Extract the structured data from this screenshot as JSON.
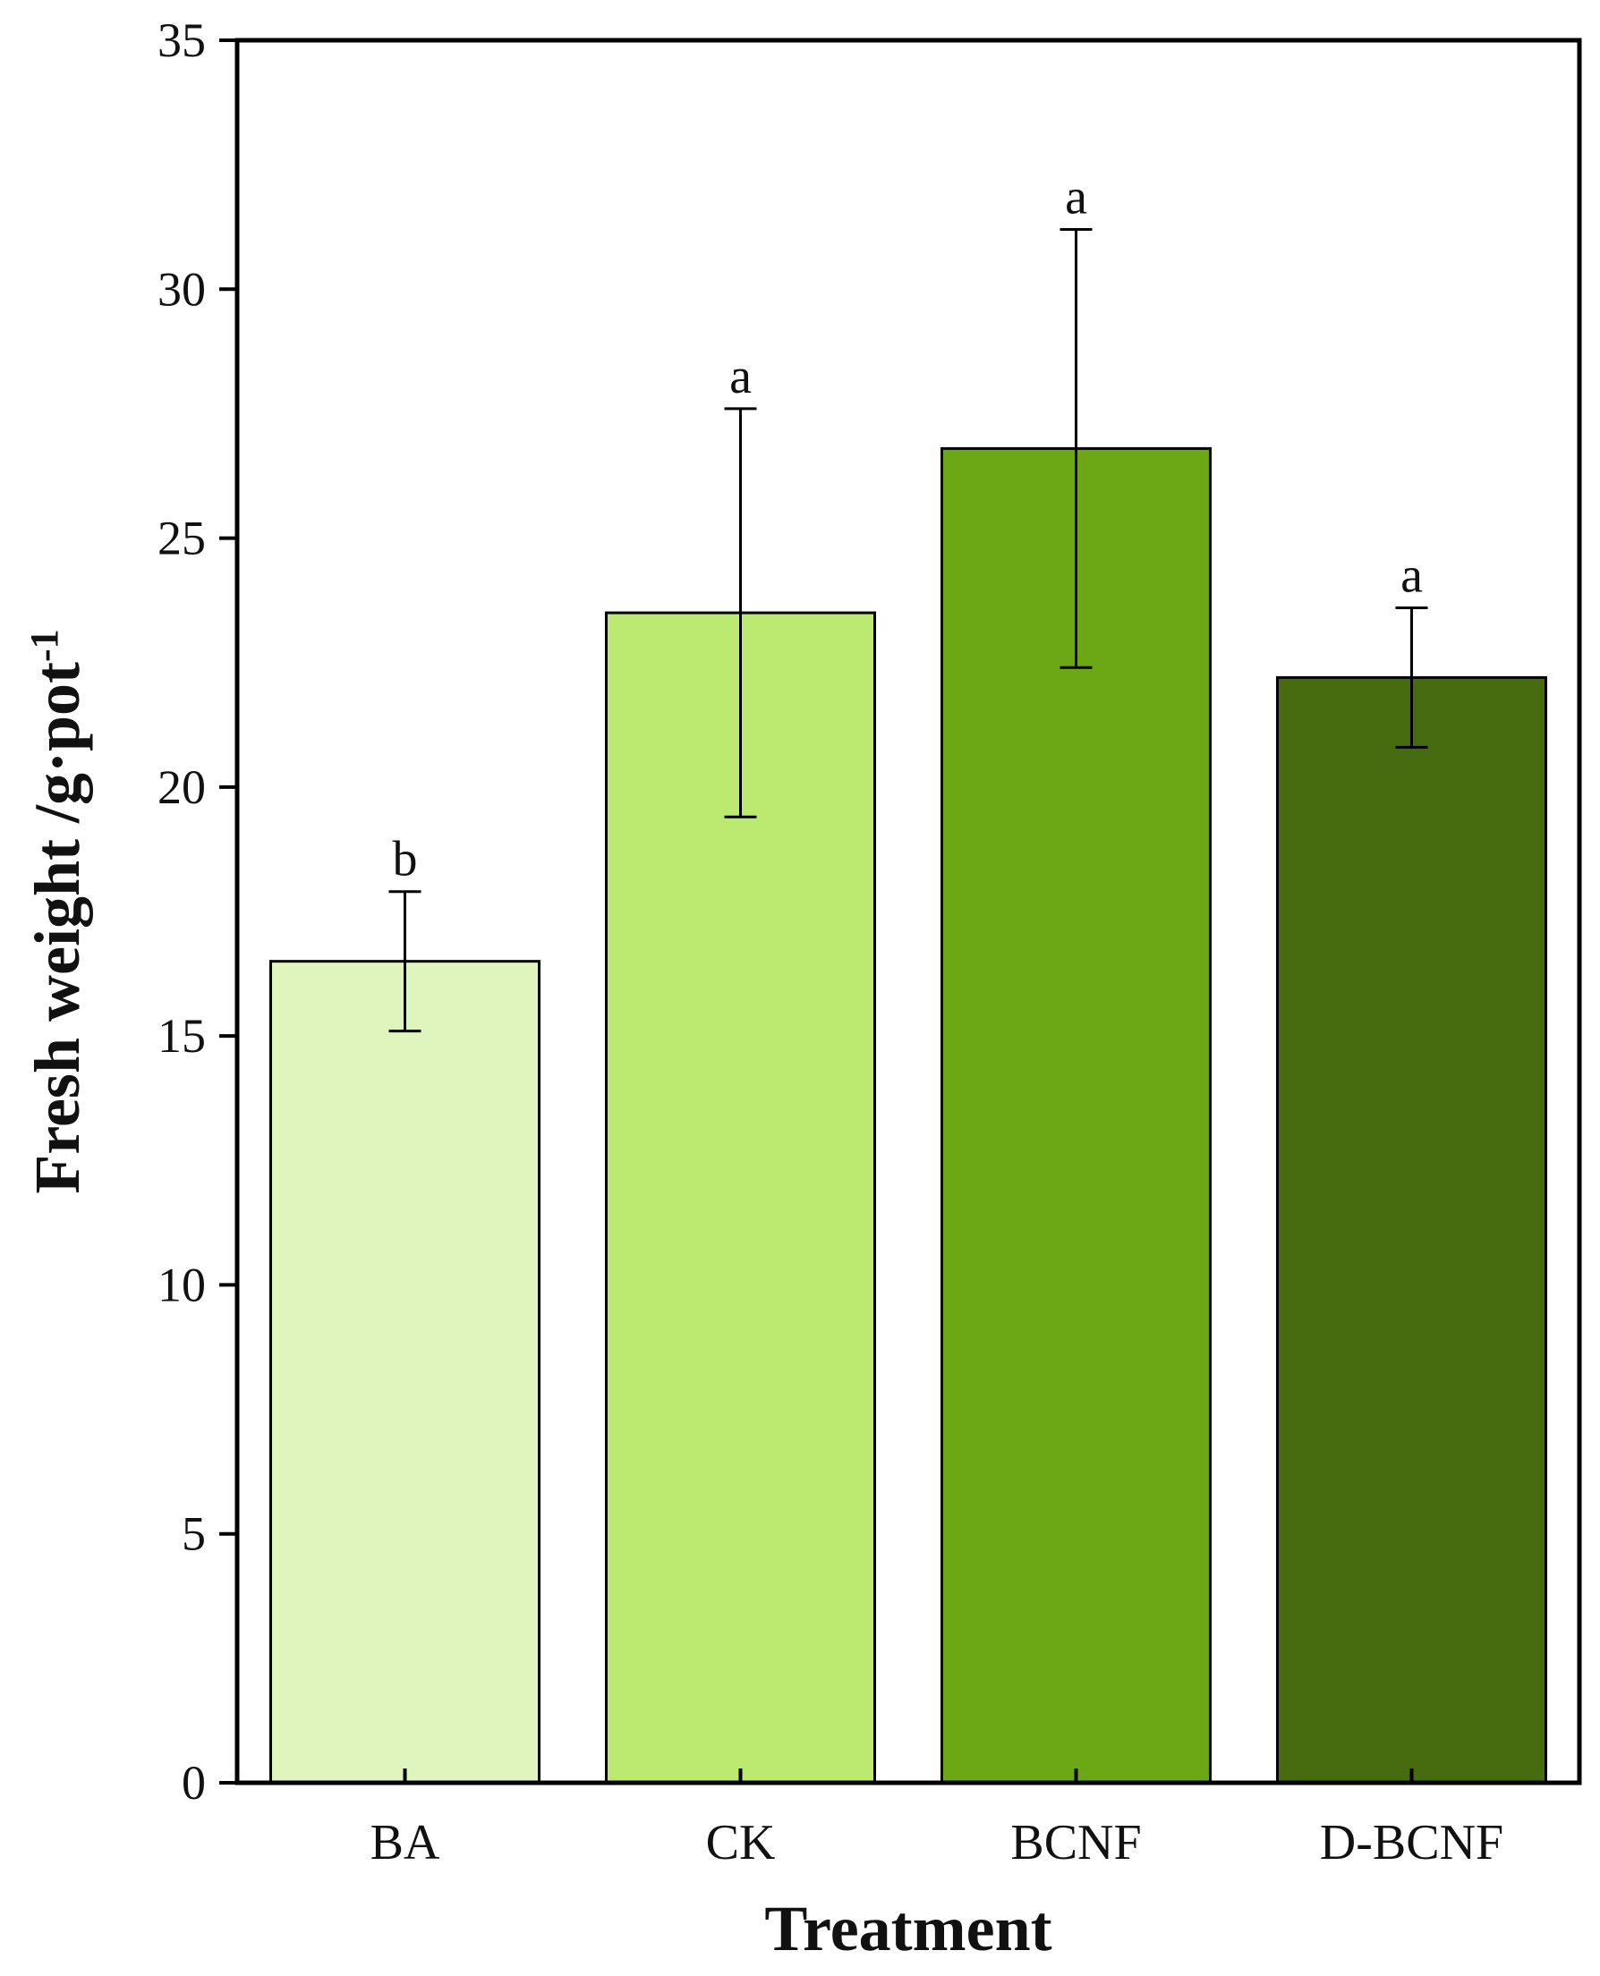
{
  "chart_data": {
    "type": "bar",
    "title": "",
    "xlabel": "Treatment",
    "ylabel": {
      "main": "Fresh weight /g·pot",
      "superscript": "-1"
    },
    "ylim": [
      0,
      35
    ],
    "yticks": [
      0,
      5,
      10,
      15,
      20,
      25,
      30,
      35
    ],
    "categories": [
      "BA",
      "CK",
      "BCNF",
      "D-BCNF"
    ],
    "values": [
      16.5,
      23.5,
      26.8,
      22.2
    ],
    "errors": [
      1.4,
      4.1,
      4.4,
      1.4
    ],
    "significance": [
      "b",
      "a",
      "a",
      "a"
    ],
    "colors": [
      "#e0f5be",
      "#bbea70",
      "#6ca716",
      "#476c10"
    ],
    "grid": false,
    "legend": "none"
  }
}
